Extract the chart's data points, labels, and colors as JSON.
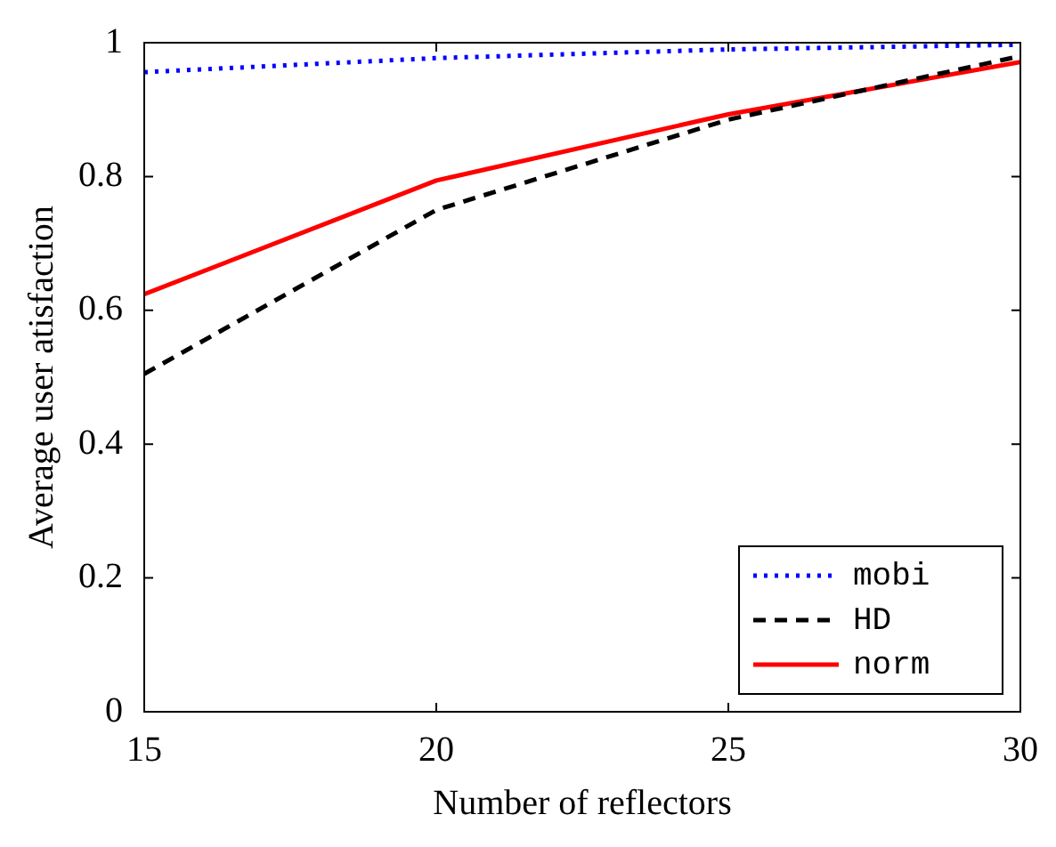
{
  "chart_data": {
    "type": "line",
    "xlabel": "Number of reflectors",
    "ylabel": "Average user atisfaction",
    "x": [
      15,
      20,
      25,
      30
    ],
    "series": [
      {
        "name": "mobi",
        "color": "#0000ff",
        "line_style": "dotted",
        "values": [
          0.956,
          0.977,
          0.99,
          0.997
        ]
      },
      {
        "name": "HD",
        "color": "#000000",
        "line_style": "dashed",
        "values": [
          0.505,
          0.75,
          0.885,
          0.98
        ]
      },
      {
        "name": "norm",
        "color": "#ff0000",
        "line_style": "solid",
        "values": [
          0.624,
          0.794,
          0.893,
          0.971
        ]
      }
    ],
    "xlim": [
      15,
      30
    ],
    "xticks": [
      15,
      20,
      25,
      30
    ],
    "ylim": [
      0,
      1
    ],
    "yticks": [
      0,
      0.2,
      0.4,
      0.6,
      0.8,
      1
    ],
    "grid": false,
    "legend": "bottom right",
    "marker": "none"
  }
}
